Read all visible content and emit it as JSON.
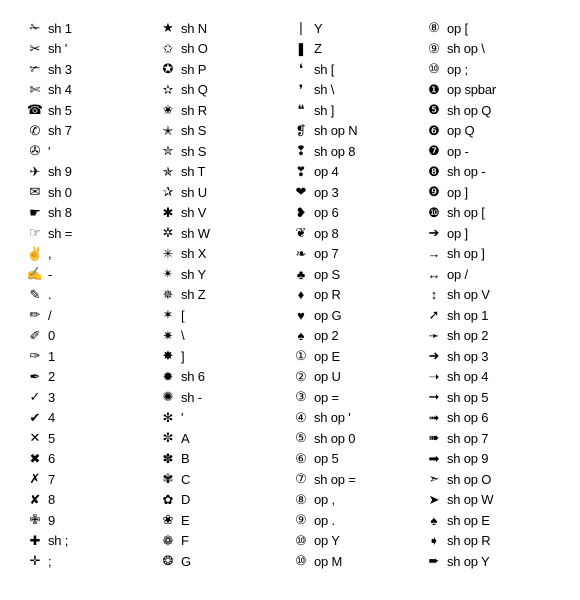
{
  "columns": [
    [
      {
        "icon": "✁",
        "label": "sh 1"
      },
      {
        "icon": "✂",
        "label": "sh '"
      },
      {
        "icon": "✃",
        "label": "sh 3"
      },
      {
        "icon": "✄",
        "label": "sh 4"
      },
      {
        "icon": "☎",
        "label": "sh 5"
      },
      {
        "icon": "✆",
        "label": "sh 7"
      },
      {
        "icon": "✇",
        "label": "'"
      },
      {
        "icon": "✈",
        "label": "sh 9"
      },
      {
        "icon": "✉",
        "label": "sh 0"
      },
      {
        "icon": "☛",
        "label": "sh 8"
      },
      {
        "icon": "☞",
        "label": "sh ="
      },
      {
        "icon": "✌",
        "label": ","
      },
      {
        "icon": "✍",
        "label": "-"
      },
      {
        "icon": "✎",
        "label": "."
      },
      {
        "icon": "✏",
        "label": "/"
      },
      {
        "icon": "✐",
        "label": "0"
      },
      {
        "icon": "✑",
        "label": "1"
      },
      {
        "icon": "✒",
        "label": "2"
      },
      {
        "icon": "✓",
        "label": "3"
      },
      {
        "icon": "✔",
        "label": "4"
      },
      {
        "icon": "✕",
        "label": "5"
      },
      {
        "icon": "✖",
        "label": "6"
      },
      {
        "icon": "✗",
        "label": "7"
      },
      {
        "icon": "✘",
        "label": "8"
      },
      {
        "icon": "✙",
        "label": "9"
      },
      {
        "icon": "✚",
        "label": "sh ;"
      },
      {
        "icon": "✛",
        "label": ";"
      }
    ],
    [
      {
        "icon": "★",
        "label": "sh N"
      },
      {
        "icon": "✩",
        "label": "sh O"
      },
      {
        "icon": "✪",
        "label": "sh P"
      },
      {
        "icon": "✫",
        "label": "sh Q"
      },
      {
        "icon": "✬",
        "label": "sh R"
      },
      {
        "icon": "✭",
        "label": "sh S"
      },
      {
        "icon": "✮",
        "label": "sh S"
      },
      {
        "icon": "✯",
        "label": "sh T"
      },
      {
        "icon": "✰",
        "label": "sh U"
      },
      {
        "icon": "✱",
        "label": "sh V"
      },
      {
        "icon": "✲",
        "label": "sh W"
      },
      {
        "icon": "✳",
        "label": "sh X"
      },
      {
        "icon": "✴",
        "label": "sh Y"
      },
      {
        "icon": "✵",
        "label": "sh Z"
      },
      {
        "icon": "✶",
        "label": "["
      },
      {
        "icon": "✷",
        "label": "\\"
      },
      {
        "icon": "✸",
        "label": "]"
      },
      {
        "icon": "✹",
        "label": "sh 6"
      },
      {
        "icon": "✺",
        "label": "sh -"
      },
      {
        "icon": "✻",
        "label": "'"
      },
      {
        "icon": "✼",
        "label": "A"
      },
      {
        "icon": "✽",
        "label": "B"
      },
      {
        "icon": "✾",
        "label": "C"
      },
      {
        "icon": "✿",
        "label": "D"
      },
      {
        "icon": "❀",
        "label": "E"
      },
      {
        "icon": "❁",
        "label": "F"
      },
      {
        "icon": "❂",
        "label": "G"
      }
    ],
    [
      {
        "icon": "❘",
        "label": "Y"
      },
      {
        "icon": "❚",
        "label": "Z"
      },
      {
        "icon": "❛",
        "label": "sh ["
      },
      {
        "icon": "❜",
        "label": "sh \\"
      },
      {
        "icon": "❝",
        "label": "sh ]"
      },
      {
        "icon": "❡",
        "label": "sh op N"
      },
      {
        "icon": "❢",
        "label": "sh op 8"
      },
      {
        "icon": "❣",
        "label": "op 4"
      },
      {
        "icon": "❤",
        "label": "op 3"
      },
      {
        "icon": "❥",
        "label": "op 6"
      },
      {
        "icon": "❦",
        "label": "op 8"
      },
      {
        "icon": "❧",
        "label": "op 7"
      },
      {
        "icon": "♣",
        "label": "op S"
      },
      {
        "icon": "♦",
        "label": "op R"
      },
      {
        "icon": "♥",
        "label": "op G"
      },
      {
        "icon": "♠",
        "label": "op 2"
      },
      {
        "icon": "①",
        "label": "op E"
      },
      {
        "icon": "②",
        "label": "op U"
      },
      {
        "icon": "③",
        "label": "op ="
      },
      {
        "icon": "④",
        "label": "sh op '"
      },
      {
        "icon": "⑤",
        "label": "sh op 0"
      },
      {
        "icon": "⑥",
        "label": "op 5"
      },
      {
        "icon": "⑦",
        "label": "sh op ="
      },
      {
        "icon": "⑧",
        "label": "op ,"
      },
      {
        "icon": "⑨",
        "label": "op ."
      },
      {
        "icon": "⑩",
        "label": "op Y"
      },
      {
        "icon": "⑩",
        "label": "op M"
      }
    ],
    [
      {
        "icon": "⑧",
        "label": "op ["
      },
      {
        "icon": "⑨",
        "label": "sh op \\"
      },
      {
        "icon": "⑩",
        "label": "op ;"
      },
      {
        "icon": "❶",
        "label": "op spbar"
      },
      {
        "icon": "❺",
        "label": "sh op Q"
      },
      {
        "icon": "❻",
        "label": "op Q"
      },
      {
        "icon": "❼",
        "label": "op -"
      },
      {
        "icon": "❽",
        "label": "sh op -"
      },
      {
        "icon": "❾",
        "label": "op ]"
      },
      {
        "icon": "❿",
        "label": "sh op ["
      },
      {
        "icon": "➔",
        "label": "op ]"
      },
      {
        "icon": "→",
        "label": "sh op ]"
      },
      {
        "icon": "↔",
        "label": "op /"
      },
      {
        "icon": "↕",
        "label": "sh op V"
      },
      {
        "icon": "➚",
        "label": "sh op 1"
      },
      {
        "icon": "➛",
        "label": "sh op 2"
      },
      {
        "icon": "➜",
        "label": "sh op 3"
      },
      {
        "icon": "➝",
        "label": "sh op 4"
      },
      {
        "icon": "➞",
        "label": "sh op 5"
      },
      {
        "icon": "➟",
        "label": "sh op 6"
      },
      {
        "icon": "➠",
        "label": "sh op 7"
      },
      {
        "icon": "➡",
        "label": "sh op 9"
      },
      {
        "icon": "➣",
        "label": "sh op O"
      },
      {
        "icon": "➤",
        "label": "sh op W"
      },
      {
        "icon": "♠",
        "label": "sh op E"
      },
      {
        "icon": "➧",
        "label": "sh op R"
      },
      {
        "icon": "➨",
        "label": "sh op Y"
      }
    ]
  ]
}
